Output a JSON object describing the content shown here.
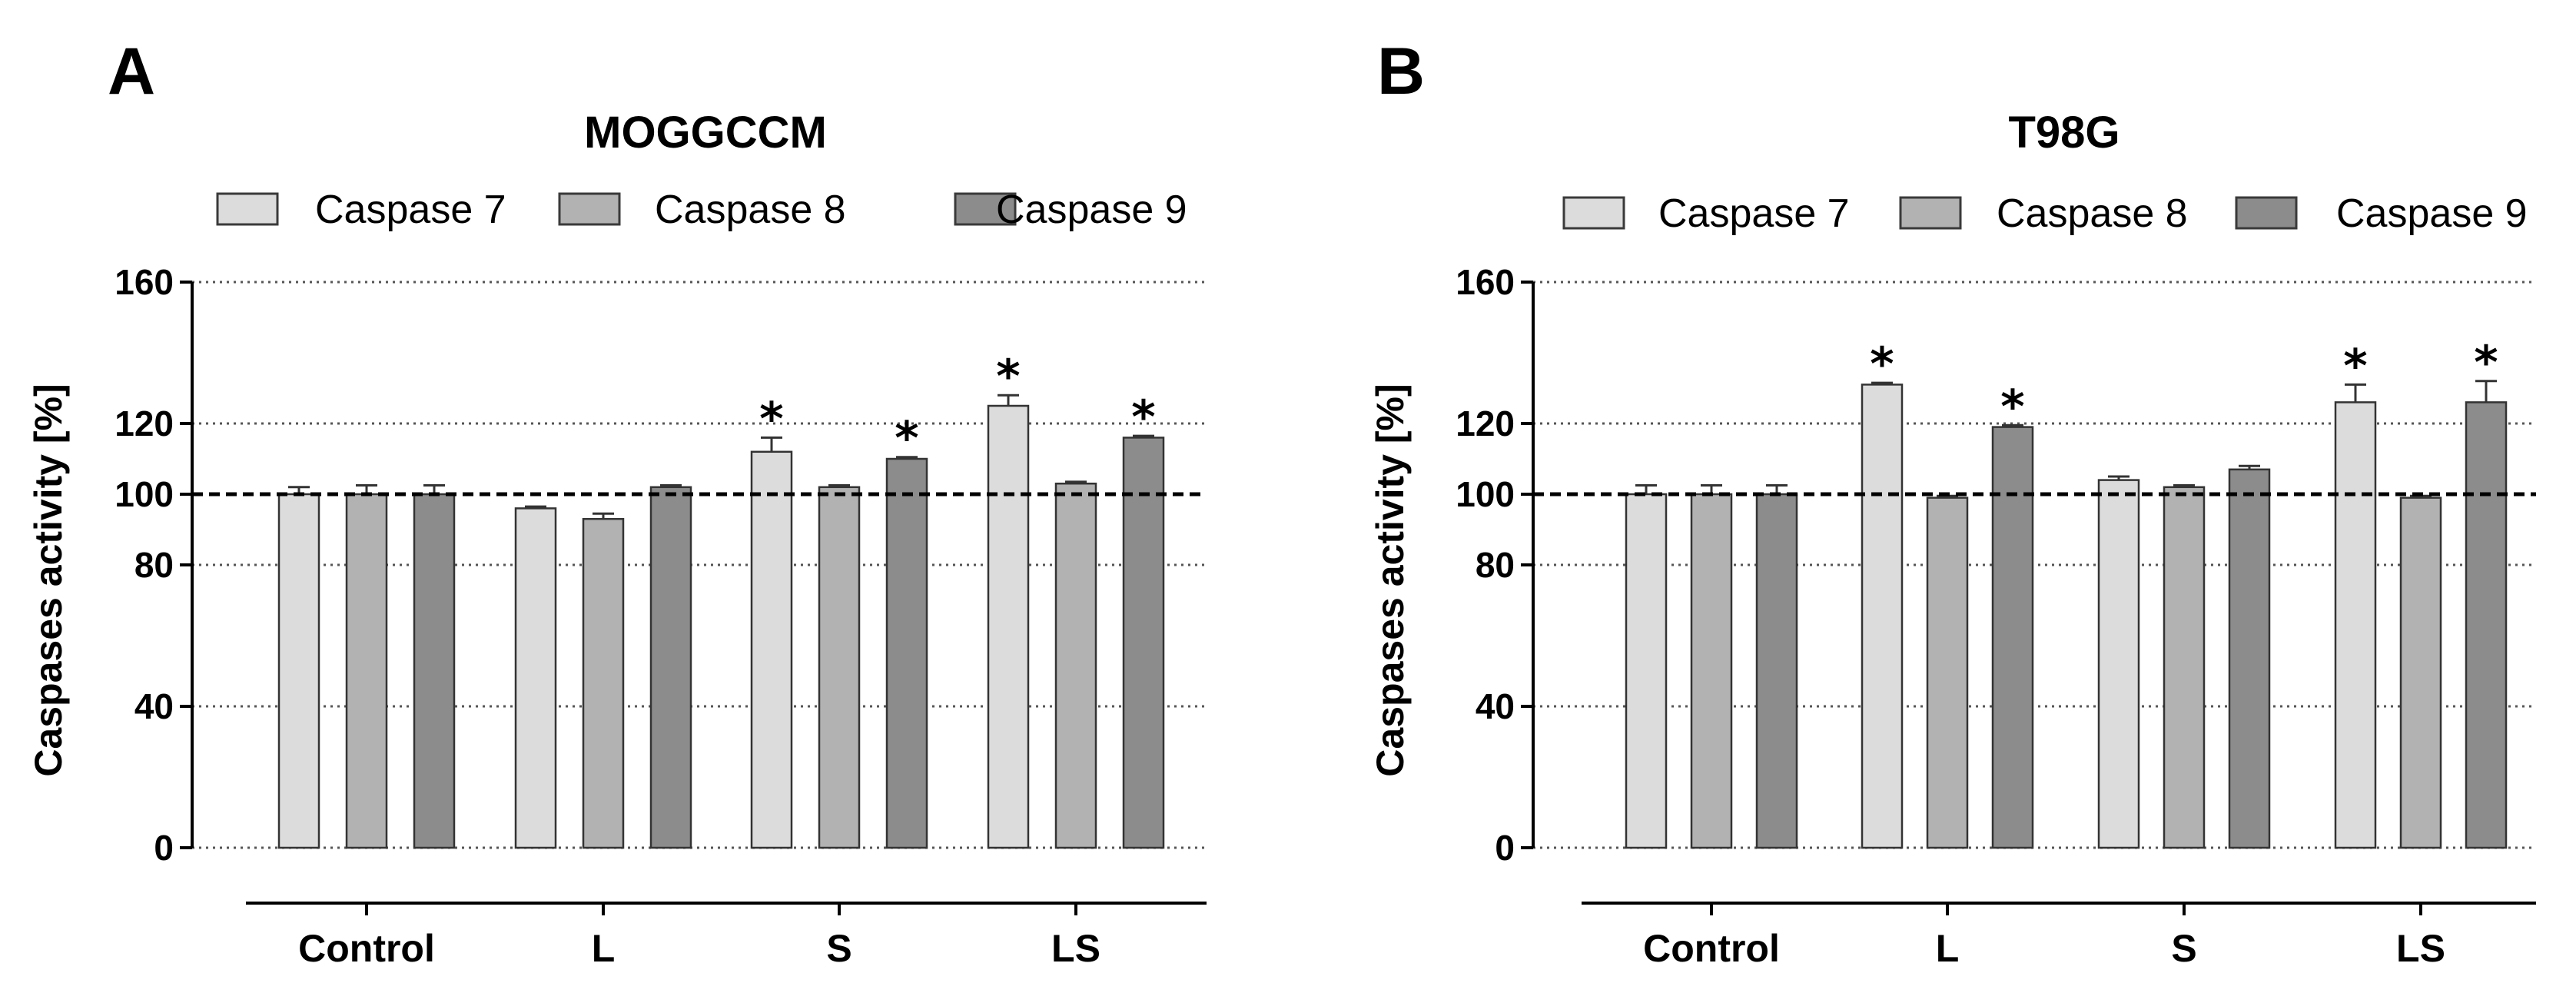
{
  "chart_data": [
    {
      "panel": "A",
      "type": "bar",
      "title": "MOGGCCM",
      "ylabel": "Caspases activity [%]",
      "xlabel": "",
      "ylim": [
        0,
        160
      ],
      "yticks": [
        0,
        40,
        80,
        100,
        120,
        160
      ],
      "reference_line": 100,
      "categories": [
        "Control",
        "L",
        "S",
        "LS"
      ],
      "series": [
        {
          "name": "Caspase 7",
          "color": "#dcdcdc",
          "values": [
            100,
            96,
            112,
            125
          ],
          "errors": [
            2,
            0.5,
            4,
            3
          ],
          "significant": [
            false,
            false,
            true,
            true
          ]
        },
        {
          "name": "Caspase 8",
          "color": "#b2b2b2",
          "values": [
            100,
            93,
            102,
            103
          ],
          "errors": [
            2.5,
            1.5,
            0.5,
            0.5
          ],
          "significant": [
            false,
            false,
            false,
            false
          ]
        },
        {
          "name": "Caspase 9",
          "color": "#8c8c8c",
          "values": [
            100,
            102,
            110,
            116
          ],
          "errors": [
            2.5,
            0.5,
            0.5,
            0.5
          ],
          "significant": [
            false,
            false,
            true,
            true
          ]
        }
      ]
    },
    {
      "panel": "B",
      "type": "bar",
      "title": "T98G",
      "ylabel": "Caspases activity [%]",
      "xlabel": "",
      "ylim": [
        0,
        160
      ],
      "yticks": [
        0,
        40,
        80,
        100,
        120,
        160
      ],
      "reference_line": 100,
      "categories": [
        "Control",
        "L",
        "S",
        "LS"
      ],
      "series": [
        {
          "name": "Caspase 7",
          "color": "#dcdcdc",
          "values": [
            100,
            131,
            104,
            126
          ],
          "errors": [
            2.5,
            0.5,
            1,
            5
          ],
          "significant": [
            false,
            true,
            false,
            true
          ]
        },
        {
          "name": "Caspase 8",
          "color": "#b2b2b2",
          "values": [
            100,
            99,
            102,
            99
          ],
          "errors": [
            2.5,
            0.5,
            0.5,
            0.5
          ],
          "significant": [
            false,
            false,
            false,
            false
          ]
        },
        {
          "name": "Caspase 9",
          "color": "#8c8c8c",
          "values": [
            100,
            119,
            107,
            126
          ],
          "errors": [
            2.5,
            0.5,
            1,
            6
          ],
          "significant": [
            false,
            true,
            false,
            true
          ]
        }
      ]
    }
  ],
  "significance_marker": "*"
}
